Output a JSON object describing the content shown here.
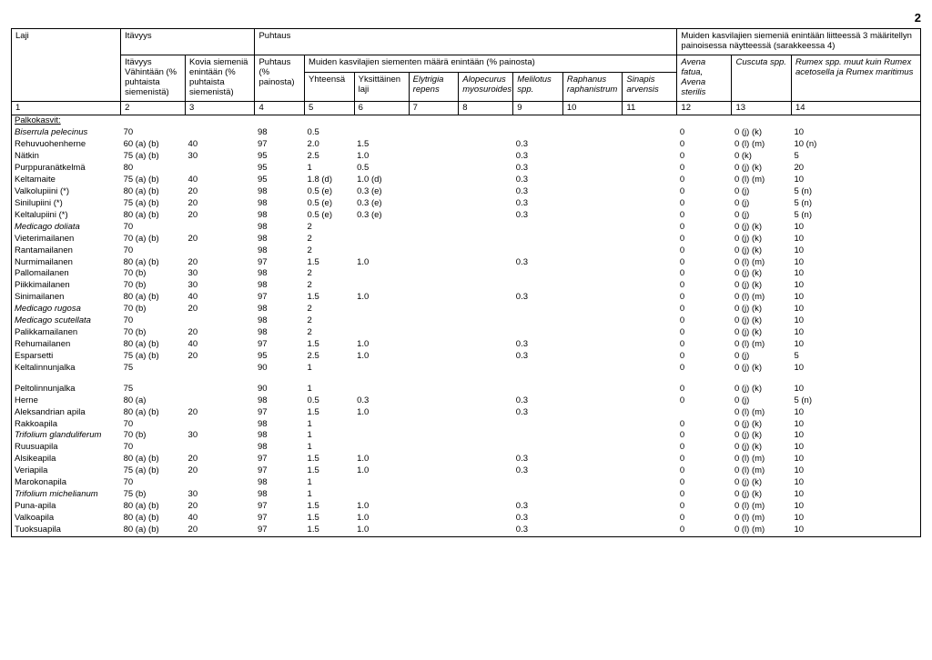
{
  "page_number": "2",
  "header": {
    "laji": "Laji",
    "itavyys": "Itävyys",
    "puhtaus": "Puhtaus",
    "muiden_title": "Muiden kasvilajien siemeniä enintään liitteessä 3 määritellyn painoisessa näytteessä (sarakkeessa 4)",
    "itavyys_sub": "Itävyys Vähintään (% puhtaista siemenistä)",
    "kovia": "Kovia siemeniä enintään (% puhtaista siemenistä)",
    "puhtaus_sub": "Puhtaus (% painosta)",
    "muiden_siementen": "Muiden kasvilajien siementen määrä enintään (% painosta)",
    "yhteensa": "Yhteensä",
    "yksittainen": "Yksittäinen laji",
    "elytrigia": "Elytrigia repens",
    "alopecurus": "Alopecurus myosuroides",
    "melilotus": "Melilotus spp.",
    "raphanus": "Raphanus raphanistrum",
    "sinapis": "Sinapis arvensis",
    "avena": "Avena fatua, Avena sterilis",
    "cuscuta": "Cuscuta spp.",
    "rumex": "Rumex spp. muut kuin Rumex acetosella ja Rumex maritimus"
  },
  "col_numbers": [
    "1",
    "2",
    "3",
    "4",
    "5",
    "6",
    "7",
    "8",
    "9",
    "10",
    "11",
    "12",
    "13",
    "14"
  ],
  "section_title": "Palkokasvit:",
  "rows": [
    {
      "name": "Biserrula pelecinus",
      "italic": true,
      "c2": "70",
      "c3": "",
      "c4": "98",
      "c5": "0.5",
      "c6": "",
      "c7": "",
      "c8": "",
      "c9": "",
      "c10": "",
      "c11": "",
      "c12": "0",
      "c13": "0 (j) (k)",
      "c14": "10"
    },
    {
      "name": "Rehuvuohenherne",
      "c2": "60 (a) (b)",
      "c3": "40",
      "c4": "97",
      "c5": "2.0",
      "c6": "1.5",
      "c7": "",
      "c8": "",
      "c9": "0.3",
      "c10": "",
      "c11": "",
      "c12": "0",
      "c13": "0 (l) (m)",
      "c14": "10 (n)"
    },
    {
      "name": "Nätkin",
      "c2": "75 (a) (b)",
      "c3": "30",
      "c4": "95",
      "c5": "2.5",
      "c6": "1.0",
      "c7": "",
      "c8": "",
      "c9": "0.3",
      "c10": "",
      "c11": "",
      "c12": "0",
      "c13": "0 (k)",
      "c14": "5"
    },
    {
      "name": "Purppuranätkelmä",
      "c2": "80",
      "c3": "",
      "c4": "95",
      "c5": "1",
      "c6": "0.5",
      "c7": "",
      "c8": "",
      "c9": "0.3",
      "c10": "",
      "c11": "",
      "c12": "0",
      "c13": "0 (j) (k)",
      "c14": "20"
    },
    {
      "name": "Keltamaite",
      "c2": "75 (a) (b)",
      "c3": "40",
      "c4": "95",
      "c5": "1.8 (d)",
      "c6": "1.0 (d)",
      "c7": "",
      "c8": "",
      "c9": "0.3",
      "c10": "",
      "c11": "",
      "c12": "0",
      "c13": "0 (l) (m)",
      "c14": "10"
    },
    {
      "name": "Valkolupiini (*)",
      "c2": "80 (a) (b)",
      "c3": "20",
      "c4": "98",
      "c5": "0.5 (e)",
      "c6": "0.3 (e)",
      "c7": "",
      "c8": "",
      "c9": "0.3",
      "c10": "",
      "c11": "",
      "c12": "0",
      "c13": "0 (j)",
      "c14": "5 (n)"
    },
    {
      "name": "Sinilupiini  (*)",
      "c2": "75 (a) (b)",
      "c3": "20",
      "c4": "98",
      "c5": "0.5 (e)",
      "c6": "0.3 (e)",
      "c7": "",
      "c8": "",
      "c9": "0.3",
      "c10": "",
      "c11": "",
      "c12": "0",
      "c13": "0 (j)",
      "c14": "5 (n)"
    },
    {
      "name": "Keltalupiini  (*)",
      "c2": "80 (a) (b)",
      "c3": "20",
      "c4": "98",
      "c5": "0.5 (e)",
      "c6": "0.3 (e)",
      "c7": "",
      "c8": "",
      "c9": "0.3",
      "c10": "",
      "c11": "",
      "c12": "0",
      "c13": "0 (j)",
      "c14": "5 (n)"
    },
    {
      "name": "Medicago doliata",
      "italic": true,
      "c2": "70",
      "c3": "",
      "c4": "98",
      "c5": "2",
      "c6": "",
      "c7": "",
      "c8": "",
      "c9": "",
      "c10": "",
      "c11": "",
      "c12": "0",
      "c13": "0 (j) (k)",
      "c14": "10"
    },
    {
      "name": "Vieterimailanen",
      "c2": "70 (a) (b)",
      "c3": "20",
      "c4": "98",
      "c5": "2",
      "c6": "",
      "c7": "",
      "c8": "",
      "c9": "",
      "c10": "",
      "c11": "",
      "c12": "0",
      "c13": "0 (j) (k)",
      "c14": "10"
    },
    {
      "name": "Rantamailanen",
      "c2": "70",
      "c3": "",
      "c4": "98",
      "c5": "2",
      "c6": "",
      "c7": "",
      "c8": "",
      "c9": "",
      "c10": "",
      "c11": "",
      "c12": "0",
      "c13": "0 (j) (k)",
      "c14": "10"
    },
    {
      "name": "Nurmimailanen",
      "c2": "80 (a) (b)",
      "c3": "20",
      "c4": "97",
      "c5": "1.5",
      "c6": "1.0",
      "c7": "",
      "c8": "",
      "c9": "0.3",
      "c10": "",
      "c11": "",
      "c12": "0",
      "c13": "0 (l) (m)",
      "c14": "10"
    },
    {
      "name": "Pallomailanen",
      "c2": "70 (b)",
      "c3": "30",
      "c4": "98",
      "c5": "2",
      "c6": "",
      "c7": "",
      "c8": "",
      "c9": "",
      "c10": "",
      "c11": "",
      "c12": "0",
      "c13": "0 (j) (k)",
      "c14": "10"
    },
    {
      "name": "Piikkimailanen",
      "c2": "70 (b)",
      "c3": "30",
      "c4": "98",
      "c5": "2",
      "c6": "",
      "c7": "",
      "c8": "",
      "c9": "",
      "c10": "",
      "c11": "",
      "c12": "0",
      "c13": "0 (j) (k)",
      "c14": "10"
    },
    {
      "name": "Sinimailanen",
      "c2": "80 (a) (b)",
      "c3": "40",
      "c4": "97",
      "c5": "1.5",
      "c6": "1.0",
      "c7": "",
      "c8": "",
      "c9": "0.3",
      "c10": "",
      "c11": "",
      "c12": "0",
      "c13": "0 (l) (m)",
      "c14": "10"
    },
    {
      "name": "Medicago rugosa",
      "italic": true,
      "c2": "70 (b)",
      "c3": "20",
      "c4": "98",
      "c5": "2",
      "c6": "",
      "c7": "",
      "c8": "",
      "c9": "",
      "c10": "",
      "c11": "",
      "c12": "0",
      "c13": "0 (j) (k)",
      "c14": "10"
    },
    {
      "name": "Medicago scutellata",
      "italic": true,
      "c2": "70",
      "c3": "",
      "c4": "98",
      "c5": "2",
      "c6": "",
      "c7": "",
      "c8": "",
      "c9": "",
      "c10": "",
      "c11": "",
      "c12": "0",
      "c13": "0 (j) (k)",
      "c14": "10"
    },
    {
      "name": "Palikkamailanen",
      "c2": "70 (b)",
      "c3": "20",
      "c4": "98",
      "c5": "2",
      "c6": "",
      "c7": "",
      "c8": "",
      "c9": "",
      "c10": "",
      "c11": "",
      "c12": "0",
      "c13": "0 (j) (k)",
      "c14": "10"
    },
    {
      "name": "Rehumailanen",
      "c2": "80 (a) (b)",
      "c3": "40",
      "c4": "97",
      "c5": "1.5",
      "c6": "1.0",
      "c7": "",
      "c8": "",
      "c9": "0.3",
      "c10": "",
      "c11": "",
      "c12": "0",
      "c13": "0 (l) (m)",
      "c14": "10"
    },
    {
      "name": "Esparsetti",
      "c2": "75 (a) (b)",
      "c3": "20",
      "c4": "95",
      "c5": "2.5",
      "c6": "1.0",
      "c7": "",
      "c8": "",
      "c9": "0.3",
      "c10": "",
      "c11": "",
      "c12": "0",
      "c13": "0 (j)",
      "c14": "5"
    },
    {
      "name": "Keltalinnunjalka",
      "c2": "75",
      "c3": "",
      "c4": "90",
      "c5": "1",
      "c6": "",
      "c7": "",
      "c8": "",
      "c9": "",
      "c10": "",
      "c11": "",
      "c12": "0",
      "c13": "0 (j) (k)",
      "c14": "10"
    }
  ],
  "rows2": [
    {
      "name": "Peltolinnunjalka",
      "c2": "75",
      "c3": "",
      "c4": "90",
      "c5": "1",
      "c6": "",
      "c7": "",
      "c8": "",
      "c9": "",
      "c10": "",
      "c11": "",
      "c12": "0",
      "c13": "0 (j) (k)",
      "c14": "10"
    },
    {
      "name": "Herne",
      "c2": "80 (a)",
      "c3": "",
      "c4": "98",
      "c5": "0.5",
      "c6": "0.3",
      "c7": "",
      "c8": "",
      "c9": "0.3",
      "c10": "",
      "c11": "",
      "c12": "0",
      "c13": "0 (j)",
      "c14": "5 (n)"
    },
    {
      "name": "Aleksandrian apila",
      "c2": "80 (a) (b)",
      "c3": "20",
      "c4": "97",
      "c5": "1.5",
      "c6": "1.0",
      "c7": "",
      "c8": "",
      "c9": "0.3",
      "c10": "",
      "c11": "",
      "c12": "",
      "c13": "0 (l) (m)",
      "c14": "10"
    },
    {
      "name": "Rakkoapila",
      "c2": "70",
      "c3": "",
      "c4": "98",
      "c5": "1",
      "c6": "",
      "c7": "",
      "c8": "",
      "c9": "",
      "c10": "",
      "c11": "",
      "c12": "0",
      "c13": "0 (j) (k)",
      "c14": "10"
    },
    {
      "name": "Trifolium glanduliferum",
      "italic": true,
      "c2": "70 (b)",
      "c3": "30",
      "c4": "98",
      "c5": "1",
      "c6": "",
      "c7": "",
      "c8": "",
      "c9": "",
      "c10": "",
      "c11": "",
      "c12": "0",
      "c13": "0 (j) (k)",
      "c14": "10"
    },
    {
      "name": "Ruusuapila",
      "c2": "70",
      "c3": "",
      "c4": "98",
      "c5": "1",
      "c6": "",
      "c7": "",
      "c8": "",
      "c9": "",
      "c10": "",
      "c11": "",
      "c12": "0",
      "c13": "0 (j) (k)",
      "c14": "10"
    },
    {
      "name": "Alsikeapila",
      "c2": "80 (a) (b)",
      "c3": "20",
      "c4": "97",
      "c5": "1.5",
      "c6": "1.0",
      "c7": "",
      "c8": "",
      "c9": "0.3",
      "c10": "",
      "c11": "",
      "c12": "0",
      "c13": "0 (l) (m)",
      "c14": "10"
    },
    {
      "name": "Veriapila",
      "c2": "75 (a) (b)",
      "c3": "20",
      "c4": "97",
      "c5": "1.5",
      "c6": "1.0",
      "c7": "",
      "c8": "",
      "c9": "0.3",
      "c10": "",
      "c11": "",
      "c12": "0",
      "c13": "0 (l) (m)",
      "c14": "10"
    },
    {
      "name": "Marokonapila",
      "c2": "70",
      "c3": "",
      "c4": "98",
      "c5": "1",
      "c6": "",
      "c7": "",
      "c8": "",
      "c9": "",
      "c10": "",
      "c11": "",
      "c12": "0",
      "c13": "0 (j) (k)",
      "c14": "10"
    },
    {
      "name": "Trifolium michelianum",
      "italic": true,
      "c2": "75 (b)",
      "c3": "30",
      "c4": "98",
      "c5": "1",
      "c6": "",
      "c7": "",
      "c8": "",
      "c9": "",
      "c10": "",
      "c11": "",
      "c12": "0",
      "c13": "0 (j) (k)",
      "c14": "10"
    },
    {
      "name": "Puna-apila",
      "c2": "80 (a) (b)",
      "c3": "20",
      "c4": "97",
      "c5": "1.5",
      "c6": "1.0",
      "c7": "",
      "c8": "",
      "c9": "0.3",
      "c10": "",
      "c11": "",
      "c12": "0",
      "c13": "0 (l) (m)",
      "c14": "10"
    },
    {
      "name": "Valkoapila",
      "c2": "80 (a) (b)",
      "c3": "40",
      "c4": "97",
      "c5": "1.5",
      "c6": "1.0",
      "c7": "",
      "c8": "",
      "c9": "0.3",
      "c10": "",
      "c11": "",
      "c12": "0",
      "c13": "0 (l) (m)",
      "c14": "10"
    },
    {
      "name": "Tuoksuapila",
      "c2": "80 (a) (b)",
      "c3": "20",
      "c4": "97",
      "c5": "1.5",
      "c6": "1.0",
      "c7": "",
      "c8": "",
      "c9": "0.3",
      "c10": "",
      "c11": "",
      "c12": "0",
      "c13": "0 (l) (m)",
      "c14": "10"
    }
  ]
}
